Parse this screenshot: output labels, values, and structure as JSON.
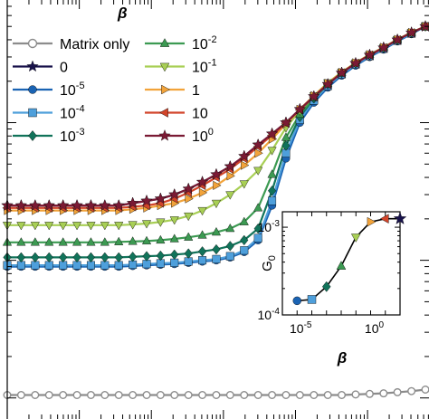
{
  "chart_data": [
    {
      "type": "line",
      "log_x": true,
      "log_y": true,
      "x": [
        0.001,
        0.00156,
        0.00244,
        0.00381,
        0.00595,
        0.00929,
        0.0145,
        0.0226,
        0.0353,
        0.0551,
        0.086,
        0.134,
        0.209,
        0.327,
        0.51,
        0.796,
        1.24,
        1.94,
        3.03,
        4.73,
        7.38,
        11.5,
        18,
        28.1,
        43.8,
        68.4,
        107,
        167,
        260,
        407,
        635
      ],
      "legend_title": "β",
      "legend": [
        "Matrix only",
        "0",
        "10-5",
        "10-4",
        "10-3",
        "10-2",
        "10-1",
        "1",
        "10",
        "100"
      ],
      "series": [
        {
          "name": "Matrix only",
          "color": "#8c8c8c",
          "marker": "circle-open",
          "values": [
            0.000105,
            0.000105,
            0.000105,
            0.000105,
            0.000105,
            0.000105,
            0.000105,
            0.000105,
            0.000105,
            0.000105,
            0.000105,
            0.000105,
            0.000105,
            0.000105,
            0.000105,
            0.000105,
            0.000105,
            0.000105,
            0.000105,
            0.000105,
            0.000105,
            0.000105,
            0.000105,
            0.000105,
            0.000105,
            0.000106,
            0.000107,
            0.000108,
            0.00011,
            0.000112,
            0.000115
          ]
        },
        {
          "name": "0",
          "color": "#18124a",
          "marker": "star",
          "values": [
            0.0025,
            0.0025,
            0.0025,
            0.0025,
            0.0025,
            0.0025,
            0.0025,
            0.0025,
            0.0025,
            0.0026,
            0.0027,
            0.0028,
            0.003,
            0.0033,
            0.0037,
            0.0042,
            0.0048,
            0.0057,
            0.0069,
            0.0083,
            0.01,
            0.0125,
            0.0155,
            0.019,
            0.023,
            0.027,
            0.031,
            0.035,
            0.04,
            0.045,
            0.05
          ]
        },
        {
          "name": "10-5",
          "color": "#1a63b3",
          "marker": "circle",
          "values": [
            0.0009,
            0.0009,
            0.0009,
            0.0009,
            0.0009,
            0.0009,
            0.0009,
            0.0009,
            0.0009,
            0.00091,
            0.00092,
            0.00093,
            0.00094,
            0.00096,
            0.00098,
            0.001,
            0.00105,
            0.00115,
            0.0014,
            0.0025,
            0.0055,
            0.01,
            0.014,
            0.018,
            0.022,
            0.026,
            0.03,
            0.034,
            0.039,
            0.044,
            0.05
          ]
        },
        {
          "name": "10-4",
          "color": "#4e9fdb",
          "marker": "square",
          "values": [
            0.00092,
            0.00092,
            0.00092,
            0.00092,
            0.00092,
            0.00092,
            0.00092,
            0.00092,
            0.00092,
            0.00093,
            0.00094,
            0.00095,
            0.00096,
            0.00098,
            0.001,
            0.00102,
            0.00107,
            0.00118,
            0.00145,
            0.0027,
            0.006,
            0.0105,
            0.0145,
            0.0185,
            0.0225,
            0.0265,
            0.0305,
            0.0345,
            0.0395,
            0.0445,
            0.05
          ]
        },
        {
          "name": "10-3",
          "color": "#11735a",
          "marker": "diamond",
          "values": [
            0.00105,
            0.00105,
            0.00105,
            0.00105,
            0.00105,
            0.00105,
            0.00105,
            0.00105,
            0.00105,
            0.00106,
            0.00107,
            0.00108,
            0.0011,
            0.00112,
            0.00116,
            0.0012,
            0.00127,
            0.0014,
            0.0017,
            0.0032,
            0.0068,
            0.011,
            0.015,
            0.019,
            0.023,
            0.027,
            0.031,
            0.035,
            0.04,
            0.045,
            0.05
          ]
        },
        {
          "name": "10-2",
          "color": "#3c9a52",
          "marker": "triangle-up",
          "values": [
            0.00135,
            0.00135,
            0.00135,
            0.00135,
            0.00135,
            0.00135,
            0.00135,
            0.00135,
            0.00136,
            0.00137,
            0.00138,
            0.0014,
            0.00143,
            0.00147,
            0.00152,
            0.0016,
            0.0017,
            0.0019,
            0.0024,
            0.0042,
            0.0078,
            0.0115,
            0.0152,
            0.0192,
            0.0232,
            0.0272,
            0.0312,
            0.0352,
            0.0402,
            0.0452,
            0.05
          ]
        },
        {
          "name": "10-1",
          "color": "#a8cf55",
          "marker": "triangle-down",
          "values": [
            0.0018,
            0.0018,
            0.0018,
            0.0018,
            0.0018,
            0.0018,
            0.0018,
            0.0018,
            0.0018,
            0.00182,
            0.00185,
            0.0019,
            0.00197,
            0.0021,
            0.0023,
            0.0026,
            0.003,
            0.0036,
            0.0045,
            0.0063,
            0.0092,
            0.0122,
            0.0157,
            0.0195,
            0.0233,
            0.0272,
            0.0312,
            0.0352,
            0.0402,
            0.0452,
            0.05
          ]
        },
        {
          "name": "1",
          "color": "#f2a33a",
          "marker": "triangle-right",
          "values": [
            0.0023,
            0.0023,
            0.0023,
            0.0023,
            0.0023,
            0.0023,
            0.0023,
            0.0023,
            0.0023,
            0.00235,
            0.0024,
            0.0025,
            0.0026,
            0.0028,
            0.0031,
            0.0035,
            0.0041,
            0.0049,
            0.006,
            0.0076,
            0.0098,
            0.0125,
            0.0157,
            0.0193,
            0.0232,
            0.0272,
            0.0312,
            0.0352,
            0.0402,
            0.0452,
            0.05
          ]
        },
        {
          "name": "10",
          "color": "#d2452a",
          "marker": "triangle-left",
          "values": [
            0.0024,
            0.0024,
            0.0024,
            0.0024,
            0.0024,
            0.0024,
            0.0024,
            0.0024,
            0.0024,
            0.00245,
            0.0025,
            0.0026,
            0.0028,
            0.0031,
            0.0035,
            0.004,
            0.0046,
            0.0055,
            0.0067,
            0.0081,
            0.0099,
            0.0124,
            0.0154,
            0.019,
            0.023,
            0.027,
            0.031,
            0.035,
            0.04,
            0.045,
            0.05
          ]
        },
        {
          "name": "100",
          "color": "#7a1a34",
          "marker": "star",
          "values": [
            0.0025,
            0.0025,
            0.0025,
            0.0025,
            0.0025,
            0.0025,
            0.0025,
            0.0025,
            0.0025,
            0.0026,
            0.0027,
            0.0028,
            0.003,
            0.0033,
            0.0037,
            0.0042,
            0.0048,
            0.0057,
            0.0069,
            0.0083,
            0.01,
            0.0125,
            0.0155,
            0.019,
            0.023,
            0.027,
            0.031,
            0.035,
            0.04,
            0.045,
            0.05
          ]
        }
      ]
    },
    {
      "type": "line",
      "log_x": true,
      "log_y": true,
      "xlabel": "β",
      "ylabel": "G0",
      "xticks": [
        "10-5",
        "100"
      ],
      "yticks": [
        "10-4",
        "10-3"
      ],
      "xlim": [
        1e-06,
        100
      ],
      "ylim": [
        0.0001,
        0.0015
      ],
      "points": [
        {
          "label": "10-5",
          "x": 1e-05,
          "y": 0.000145,
          "color": "#1a63b3",
          "marker": "circle"
        },
        {
          "label": "10-4",
          "x": 0.0001,
          "y": 0.00015,
          "color": "#4e9fdb",
          "marker": "square"
        },
        {
          "label": "10-3",
          "x": 0.001,
          "y": 0.00021,
          "color": "#11735a",
          "marker": "diamond"
        },
        {
          "label": "10-2",
          "x": 0.01,
          "y": 0.00036,
          "color": "#3c9a52",
          "marker": "triangle-up"
        },
        {
          "label": "10-1",
          "x": 0.1,
          "y": 0.00077,
          "color": "#a8cf55",
          "marker": "triangle-down"
        },
        {
          "label": "1",
          "x": 1,
          "y": 0.00115,
          "color": "#f2a33a",
          "marker": "triangle-right"
        },
        {
          "label": "10",
          "x": 10,
          "y": 0.00125,
          "color": "#d2452a",
          "marker": "triangle-left"
        },
        {
          "label": "100",
          "x": 100,
          "y": 0.00125,
          "color": "#18124a",
          "marker": "star"
        }
      ]
    }
  ]
}
